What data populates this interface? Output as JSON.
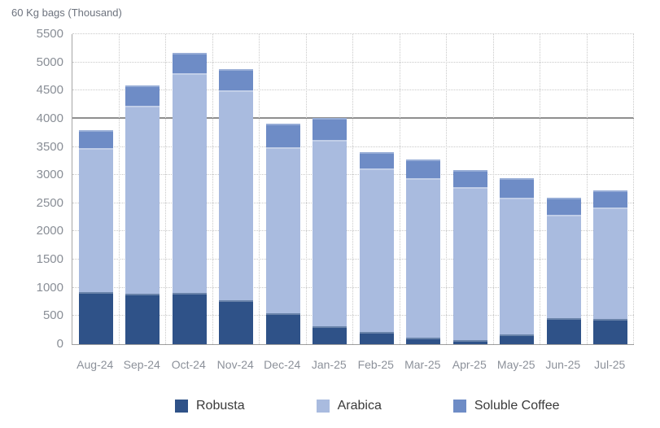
{
  "title": "60 Kg bags (Thousand)",
  "colors": {
    "robusta": "#2F5288",
    "arabica": "#A9BBDF",
    "soluble": "#6E8CC6",
    "grid_dotted": "#C9C9C9",
    "grid_solid": "#8F8F8F",
    "axis_line": "#A6A6A6",
    "tick_text": "#898E96",
    "xlabel_text": "#8C919A",
    "legend_text": "#3A3A3A",
    "title_text": "#6D737E"
  },
  "chart_data": {
    "type": "bar",
    "stacked": true,
    "title": "60 Kg bags (Thousand)",
    "xlabel": "",
    "ylabel": "60 Kg bags (Thousand)",
    "categories": [
      "Aug-24",
      "Sep-24",
      "Oct-24",
      "Nov-24",
      "Dec-24",
      "Jan-25",
      "Feb-25",
      "Mar-25",
      "Apr-25",
      "May-25",
      "Jun-25",
      "Jul-25"
    ],
    "series": [
      {
        "name": "Robusta",
        "color_key": "robusta",
        "values": [
          925,
          900,
          910,
          775,
          550,
          320,
          210,
          120,
          70,
          170,
          465,
          445
        ]
      },
      {
        "name": "Arabica",
        "color_key": "arabica",
        "values": [
          2550,
          3330,
          3900,
          3725,
          2945,
          3310,
          2910,
          2825,
          2710,
          2425,
          1825,
          1985
        ]
      },
      {
        "name": "Soluble Coffee",
        "color_key": "soluble",
        "values": [
          320,
          360,
          365,
          385,
          415,
          380,
          285,
          335,
          310,
          350,
          305,
          300
        ]
      }
    ],
    "totals": [
      3795,
      4590,
      5175,
      4885,
      3910,
      4010,
      3405,
      3280,
      3090,
      2945,
      2595,
      2730
    ],
    "ylim": [
      0,
      5500
    ],
    "yticks": [
      0,
      500,
      1000,
      1500,
      2000,
      2500,
      3000,
      3500,
      4000,
      4500,
      5000,
      5500
    ],
    "solid_gridline_at": 4000,
    "grid": "dotted horizontal and vertical gridlines, solid reference line at 4000",
    "legend_position": "bottom"
  },
  "legend": {
    "items": [
      "Robusta",
      "Arabica",
      "Soluble Coffee"
    ]
  }
}
